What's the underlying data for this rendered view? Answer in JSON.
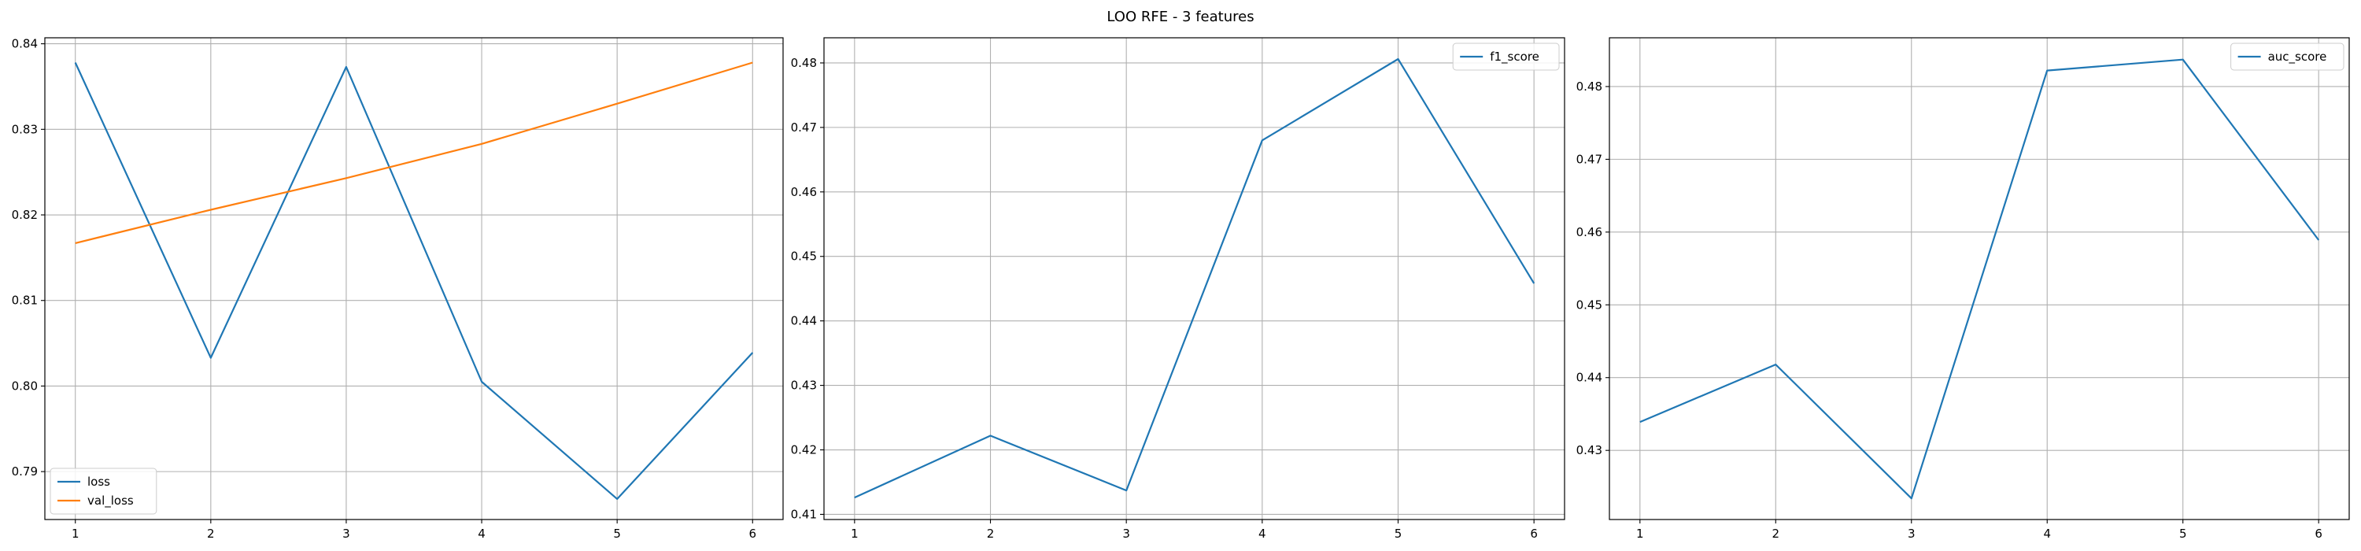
{
  "figure": {
    "title": "LOO RFE - 3 features"
  },
  "colors": {
    "blue": "#1f77b4",
    "orange": "#ff7f0e",
    "grid": "#b0b0b0"
  },
  "chart_data": [
    {
      "type": "line",
      "x": [
        1,
        2,
        3,
        4,
        5,
        6
      ],
      "xticks": [
        1,
        2,
        3,
        4,
        5,
        6
      ],
      "yticks": [
        0.79,
        0.8,
        0.81,
        0.82,
        0.83,
        0.84
      ],
      "ylim": [
        0.7844,
        0.8407
      ],
      "grid": true,
      "legend": "lower-left",
      "series": [
        {
          "name": "loss",
          "color": "#1f77b4",
          "values": [
            0.8378,
            0.8033,
            0.8373,
            0.8005,
            0.7868,
            0.8039
          ]
        },
        {
          "name": "val_loss",
          "color": "#ff7f0e",
          "values": [
            0.8167,
            0.8206,
            0.8243,
            0.8283,
            0.833,
            0.8378
          ]
        }
      ]
    },
    {
      "type": "line",
      "x": [
        1,
        2,
        3,
        4,
        5,
        6
      ],
      "xticks": [
        1,
        2,
        3,
        4,
        5,
        6
      ],
      "yticks": [
        0.41,
        0.42,
        0.43,
        0.44,
        0.45,
        0.46,
        0.47,
        0.48
      ],
      "ylim": [
        0.4092,
        0.4839
      ],
      "grid": true,
      "legend": "upper-right",
      "series": [
        {
          "name": "f1_score",
          "color": "#1f77b4",
          "values": [
            0.4126,
            0.4222,
            0.4137,
            0.468,
            0.4806,
            0.4458
          ]
        }
      ]
    },
    {
      "type": "line",
      "x": [
        1,
        2,
        3,
        4,
        5,
        6
      ],
      "xticks": [
        1,
        2,
        3,
        4,
        5,
        6
      ],
      "yticks": [
        0.43,
        0.44,
        0.45,
        0.46,
        0.47,
        0.48
      ],
      "ylim": [
        0.4205,
        0.4867
      ],
      "grid": true,
      "legend": "upper-right",
      "series": [
        {
          "name": "auc_score",
          "color": "#1f77b4",
          "values": [
            0.4339,
            0.4418,
            0.4234,
            0.4822,
            0.4837,
            0.4589
          ]
        }
      ]
    }
  ]
}
